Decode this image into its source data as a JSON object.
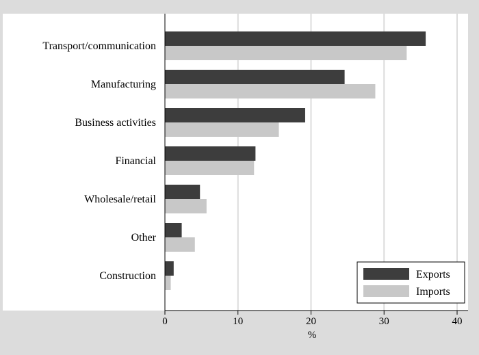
{
  "colors": {
    "exports": "#3d3d3d",
    "imports": "#c8c8c8",
    "page_background": "#dcdcdc",
    "plot_background": "#ffffff",
    "gridline": "#dcdcdc"
  },
  "chart_data": {
    "type": "bar",
    "orientation": "horizontal",
    "title": "",
    "xlabel": "%",
    "ylabel": "",
    "xlim": [
      0,
      40
    ],
    "xticks": [
      0,
      10,
      20,
      30,
      40
    ],
    "grid": true,
    "legend_position": "bottom-right",
    "categories": [
      "Transport/communication",
      "Manufacturing",
      "Business activities",
      "Financial",
      "Wholesale/retail",
      "Other",
      "Construction"
    ],
    "series": [
      {
        "name": "Exports",
        "values": [
          35.7,
          24.6,
          19.2,
          12.4,
          4.8,
          2.3,
          1.2
        ]
      },
      {
        "name": "Imports",
        "values": [
          33.1,
          28.8,
          15.6,
          12.2,
          5.7,
          4.1,
          0.8
        ]
      }
    ]
  }
}
